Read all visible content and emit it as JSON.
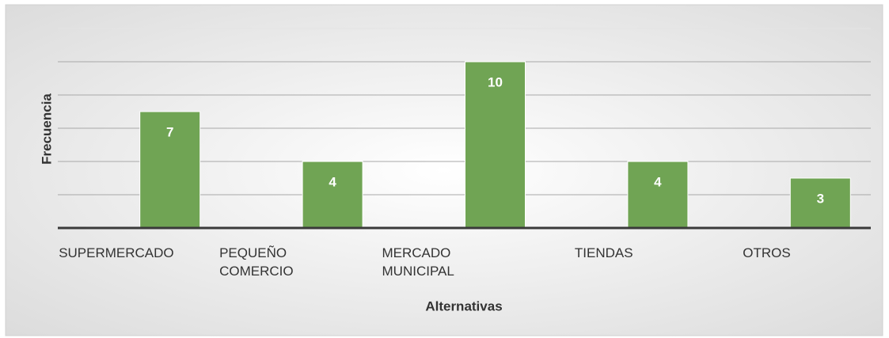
{
  "chart_data": {
    "type": "bar",
    "x_label": "Alternativas",
    "y_label": "Frecuencia",
    "categories": [
      "SUPERMERCADO",
      "PEQUEÑO COMERCIO",
      "MERCADO MUNICIPAL",
      "TIENDAS",
      "OTROS"
    ],
    "values": [
      7,
      4,
      10,
      4,
      3
    ],
    "color": "#70a454",
    "ylim": [
      0,
      12
    ],
    "yticks": [
      0,
      2,
      4,
      6,
      8,
      10,
      12
    ],
    "grid": true
  }
}
